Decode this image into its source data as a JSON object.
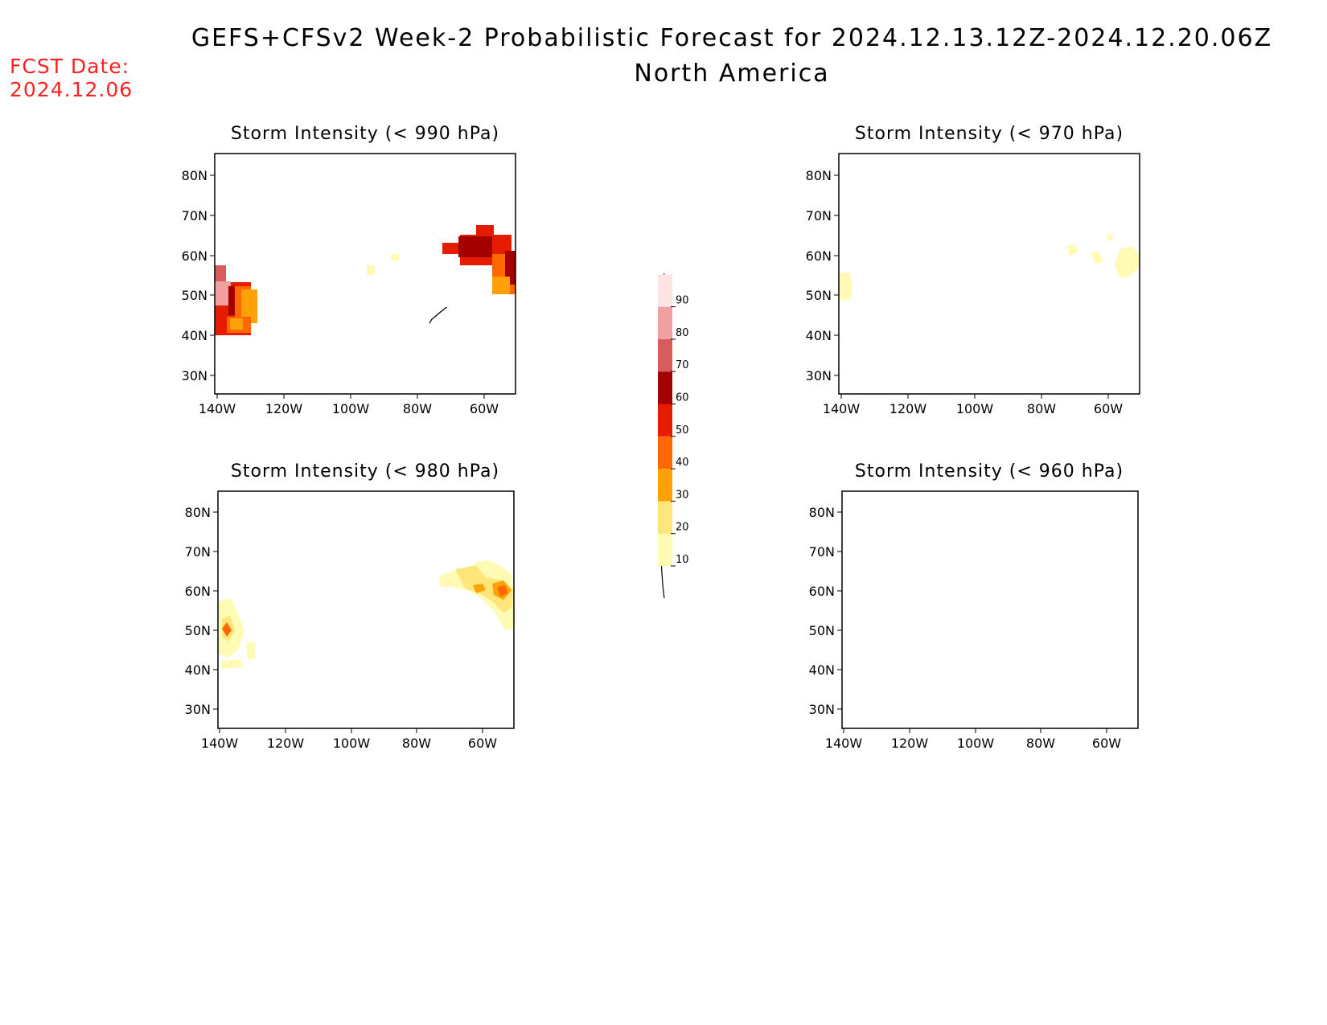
{
  "header": {
    "title": "GEFS+CFSv2 Week-2 Probabilistic Forecast for 2024.12.13.12Z-2024.12.20.06Z",
    "subtitle": "North America",
    "fcst_label": "FCST Date:",
    "fcst_date": "2024.12.06"
  },
  "axes": {
    "lat_labels": [
      "80N",
      "70N",
      "60N",
      "50N",
      "40N",
      "30N"
    ],
    "lon_labels": [
      "140W",
      "120W",
      "100W",
      "80W",
      "60W"
    ]
  },
  "colorbar": {
    "levels": [
      "10",
      "20",
      "30",
      "40",
      "50",
      "60",
      "70",
      "80",
      "90"
    ],
    "colors": [
      "#fffbb5",
      "#ffe57a",
      "#ffa20a",
      "#ff6800",
      "#e61c00",
      "#a50000",
      "#d85c5c",
      "#f2a0a0",
      "#ffe4e4"
    ]
  },
  "panels": [
    {
      "id": "p990",
      "title": "Storm Intensity (< 990 hPa)"
    },
    {
      "id": "p970",
      "title": "Storm Intensity (< 970 hPa)"
    },
    {
      "id": "p980",
      "title": "Storm Intensity (< 980 hPa)"
    },
    {
      "id": "p960",
      "title": "Storm Intensity (< 960 hPa)"
    }
  ]
}
